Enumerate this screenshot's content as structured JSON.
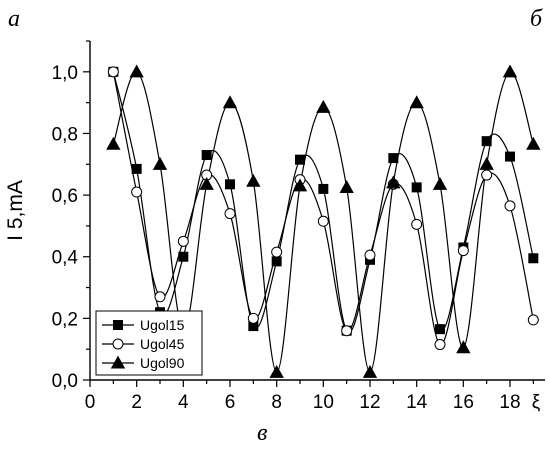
{
  "panel_labels": {
    "top_left": "а",
    "top_right": "б",
    "bottom": "в"
  },
  "chart_data": {
    "type": "line",
    "xlabel": "ξ",
    "ylabel": "I 5,mA",
    "xlim": [
      0,
      19.5
    ],
    "ylim": [
      0,
      1.1
    ],
    "xticks": [
      0,
      2,
      4,
      6,
      8,
      10,
      12,
      14,
      16,
      18
    ],
    "yticks": [
      0.0,
      0.2,
      0.4,
      0.6,
      0.8,
      1.0
    ],
    "ytick_labels": [
      "0,0",
      "0,2",
      "0,4",
      "0,6",
      "0,8",
      "1,0"
    ],
    "legend_position": "bottom-left",
    "x": [
      1,
      2,
      3,
      4,
      5,
      6,
      7,
      8,
      9,
      10,
      11,
      12,
      13,
      14,
      15,
      16,
      17,
      18,
      19
    ],
    "series": [
      {
        "name": "Ugol15",
        "marker": "square",
        "fill": "#000000",
        "values": [
          1.0,
          0.685,
          0.22,
          0.4,
          0.73,
          0.635,
          0.175,
          0.385,
          0.715,
          0.62,
          0.16,
          0.39,
          0.72,
          0.625,
          0.165,
          0.43,
          0.775,
          0.725,
          0.395
        ]
      },
      {
        "name": "Ugol45",
        "marker": "circle",
        "fill": "#ffffff",
        "values": [
          1.0,
          0.61,
          0.27,
          0.45,
          0.665,
          0.54,
          0.2,
          0.415,
          0.65,
          0.515,
          0.16,
          0.405,
          0.635,
          0.505,
          0.115,
          0.42,
          0.665,
          0.565,
          0.195
        ]
      },
      {
        "name": "Ugol90",
        "marker": "triangle",
        "fill": "#000000",
        "values": [
          0.765,
          1.0,
          0.7,
          0.16,
          0.635,
          0.9,
          0.645,
          0.025,
          0.63,
          0.885,
          0.625,
          0.025,
          0.64,
          0.9,
          0.635,
          0.105,
          0.7,
          1.0,
          0.765
        ]
      }
    ]
  }
}
